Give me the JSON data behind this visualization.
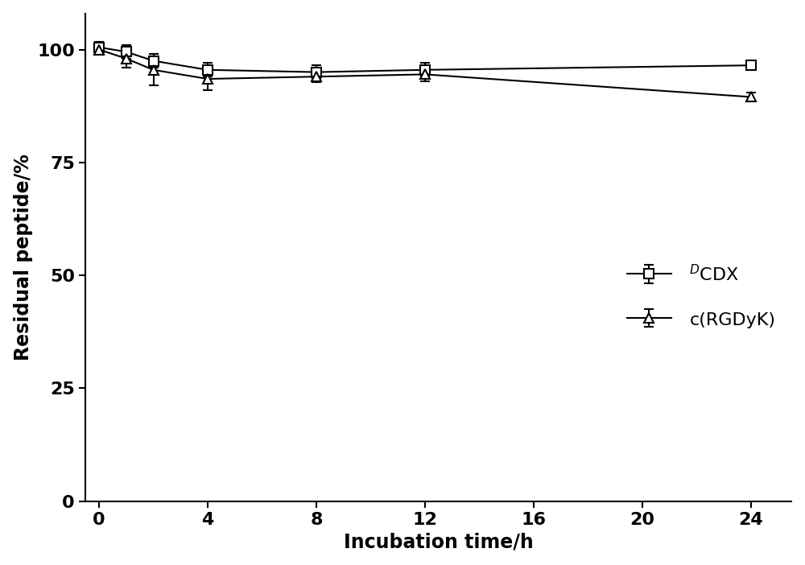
{
  "dcdx_x": [
    0,
    1,
    2,
    4,
    8,
    12,
    24
  ],
  "dcdx_y": [
    100.5,
    99.5,
    97.5,
    95.5,
    95.0,
    95.5,
    96.5
  ],
  "dcdx_yerr": [
    1.2,
    1.5,
    1.5,
    1.5,
    1.5,
    1.5,
    1.0
  ],
  "crgdyk_x": [
    0,
    1,
    2,
    4,
    8,
    12,
    24
  ],
  "crgdyk_y": [
    100.0,
    98.0,
    95.5,
    93.5,
    94.0,
    94.5,
    89.5
  ],
  "crgdyk_yerr": [
    1.0,
    2.0,
    3.5,
    2.5,
    1.2,
    1.5,
    1.0
  ],
  "xlabel": "Incubation time/h",
  "ylabel": "Residual peptide/%",
  "ylim": [
    0,
    108
  ],
  "xlim": [
    -0.5,
    25.5
  ],
  "yticks": [
    0,
    25,
    50,
    75,
    100
  ],
  "xticks": [
    0,
    4,
    8,
    12,
    16,
    20,
    24
  ],
  "legend_label1": "$^{D}$CDX",
  "legend_label2": "c(RGDyK)",
  "background_color": "#ffffff",
  "line_color": "#000000",
  "marker_size": 8,
  "linewidth": 1.5,
  "fontsize_label": 17,
  "fontsize_tick": 16,
  "fontsize_legend": 16
}
